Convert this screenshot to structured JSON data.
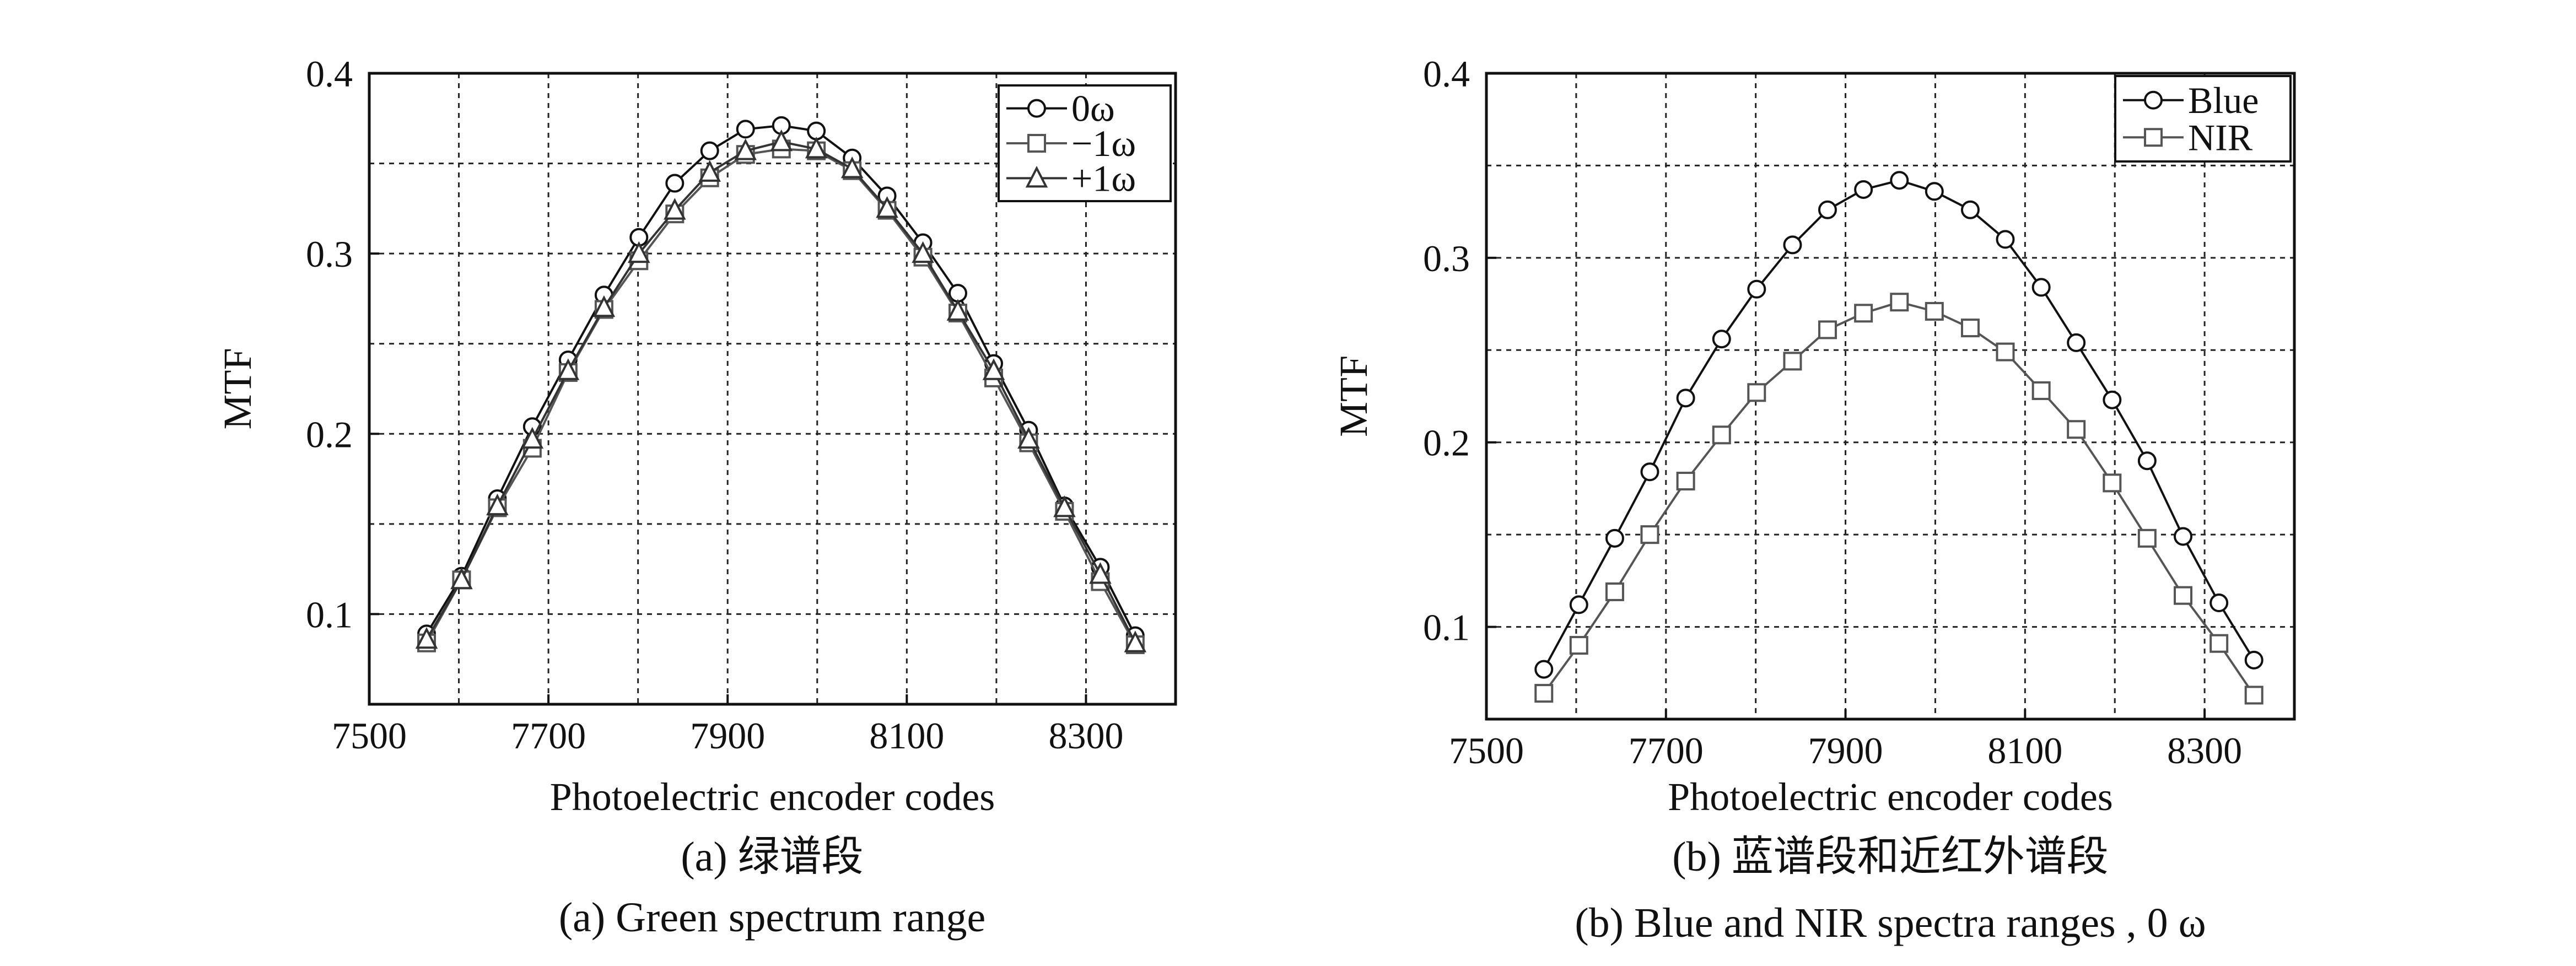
{
  "chart_data": [
    {
      "type": "line",
      "xlabel": "Photoelectric encoder codes",
      "ylabel": "MTF",
      "xlim": [
        7500,
        8400
      ],
      "ylim": [
        0.05,
        0.4
      ],
      "xticks": [
        7500,
        7700,
        7900,
        8100,
        8300
      ],
      "yticks": [
        0.1,
        0.2,
        0.3,
        0.4
      ],
      "ytick_labels": [
        "0.1",
        "0.2",
        "0.3",
        "0.4"
      ],
      "grid": true,
      "legend_position": "top-right",
      "caption_cn": "(a) 绿谱段",
      "caption_en": "(a) Green spectrum range",
      "x": [
        7564,
        7603,
        7643,
        7682,
        7722,
        7762,
        7801,
        7841,
        7880,
        7920,
        7960,
        7999,
        8039,
        8078,
        8118,
        8157,
        8197,
        8236,
        8276,
        8316,
        8355
      ],
      "series": [
        {
          "name": "0ω",
          "marker": "circle",
          "values": [
            0.089,
            0.121,
            0.164,
            0.204,
            0.241,
            0.277,
            0.309,
            0.339,
            0.357,
            0.369,
            0.371,
            0.368,
            0.353,
            0.332,
            0.306,
            0.278,
            0.239,
            0.202,
            0.16,
            0.126,
            0.088
          ]
        },
        {
          "name": "−1ω",
          "marker": "square",
          "values": [
            0.084,
            0.119,
            0.159,
            0.192,
            0.234,
            0.269,
            0.296,
            0.322,
            0.342,
            0.355,
            0.358,
            0.357,
            0.346,
            0.324,
            0.298,
            0.267,
            0.231,
            0.195,
            0.157,
            0.118,
            0.083
          ]
        },
        {
          "name": "+1ω",
          "marker": "triangle",
          "values": [
            0.086,
            0.119,
            0.16,
            0.197,
            0.235,
            0.27,
            0.3,
            0.324,
            0.345,
            0.357,
            0.362,
            0.358,
            0.347,
            0.325,
            0.3,
            0.268,
            0.235,
            0.197,
            0.159,
            0.122,
            0.084
          ]
        }
      ]
    },
    {
      "type": "line",
      "xlabel": "Photoelectric encoder codes",
      "ylabel": "MTF",
      "xlim": [
        7500,
        8400
      ],
      "ylim": [
        0.05,
        0.4
      ],
      "xticks": [
        7500,
        7700,
        7900,
        8100,
        8300
      ],
      "yticks": [
        0.1,
        0.2,
        0.3,
        0.4
      ],
      "ytick_labels": [
        "0.1",
        "0.2",
        "0.3",
        "0.4"
      ],
      "grid": true,
      "legend_position": "top-right",
      "caption_cn": "(b) 蓝谱段和近红外谱段",
      "caption_en": "(b) Blue and NIR spectra ranges , 0 ω",
      "x": [
        7564,
        7603,
        7643,
        7682,
        7722,
        7762,
        7801,
        7841,
        7880,
        7920,
        7960,
        7999,
        8039,
        8078,
        8118,
        8157,
        8197,
        8236,
        8276,
        8316,
        8355
      ],
      "series": [
        {
          "name": "Blue",
          "marker": "circle",
          "values": [
            0.077,
            0.112,
            0.148,
            0.184,
            0.224,
            0.256,
            0.283,
            0.307,
            0.326,
            0.337,
            0.342,
            0.336,
            0.326,
            0.31,
            0.284,
            0.254,
            0.223,
            0.19,
            0.149,
            0.113,
            0.082
          ]
        },
        {
          "name": "NIR",
          "marker": "square",
          "values": [
            0.064,
            0.09,
            0.119,
            0.15,
            0.179,
            0.204,
            0.227,
            0.244,
            0.261,
            0.27,
            0.276,
            0.271,
            0.262,
            0.249,
            0.228,
            0.207,
            0.178,
            0.148,
            0.117,
            0.091,
            0.063
          ]
        }
      ]
    }
  ]
}
